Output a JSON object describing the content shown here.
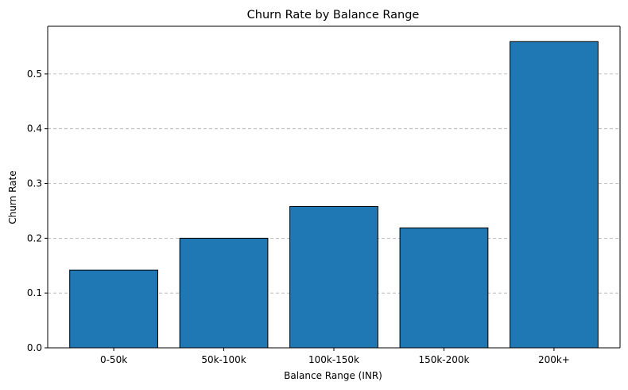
{
  "chart_data": {
    "type": "bar",
    "title": "Churn Rate by Balance Range",
    "xlabel": "Balance Range (INR)",
    "ylabel": "Churn Rate",
    "categories": [
      "0-50k",
      "50k-100k",
      "100k-150k",
      "150k-200k",
      "200k+"
    ],
    "values": [
      0.142,
      0.2,
      0.258,
      0.219,
      0.559
    ],
    "ylim": [
      0,
      0.587
    ],
    "yticks": [
      0.0,
      0.1,
      0.2,
      0.3,
      0.4,
      0.5
    ],
    "ytick_labels": [
      "0.0",
      "0.1",
      "0.2",
      "0.3",
      "0.4",
      "0.5"
    ],
    "grid": "y-dashed",
    "bar_color": "#1f77b4",
    "edge_color": "#000000"
  }
}
